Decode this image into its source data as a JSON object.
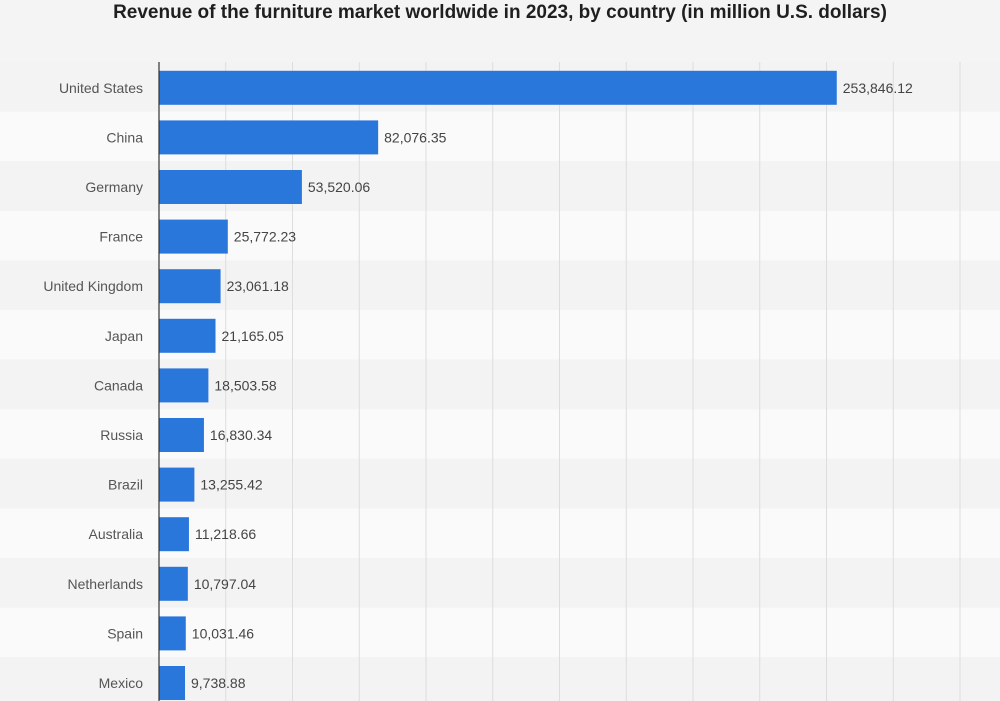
{
  "chart_data": {
    "type": "bar",
    "orientation": "horizontal",
    "title": "Revenue of the furniture market worldwide in 2023, by country (in million U.S. dollars)",
    "xlabel": "",
    "ylabel": "",
    "categories": [
      "United States",
      "China",
      "Germany",
      "France",
      "United Kingdom",
      "Japan",
      "Canada",
      "Russia",
      "Brazil",
      "Australia",
      "Netherlands",
      "Spain",
      "Mexico"
    ],
    "values": [
      253846.12,
      82076.35,
      53520.06,
      25772.23,
      23061.18,
      21165.05,
      18503.58,
      16830.34,
      13255.42,
      11218.66,
      10797.04,
      10031.46,
      9738.88
    ],
    "value_labels": [
      "253,846.12",
      "82,076.35",
      "53,520.06",
      "25,772.23",
      "23,061.18",
      "21,165.05",
      "18,503.58",
      "16,830.34",
      "13,255.42",
      "11,218.66",
      "10,797.04",
      "10,031.46",
      "9,738.88"
    ],
    "xlim": [
      0,
      300000
    ],
    "grid": true,
    "bar_color": "#2a77dc",
    "row_colors": [
      "#f3f3f3",
      "#fafafa"
    ]
  }
}
